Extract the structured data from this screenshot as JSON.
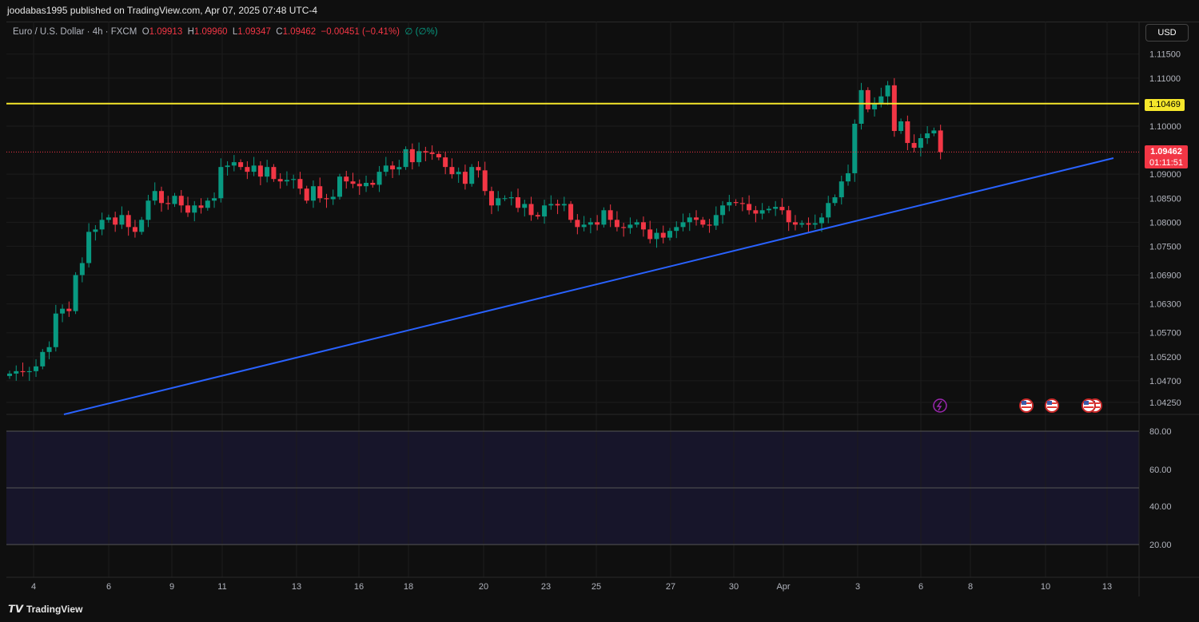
{
  "header": {
    "published": "joodabas1995 published on TradingView.com, Apr 07, 2025 07:48 UTC-4"
  },
  "legend": {
    "symbol": "Euro / U.S. Dollar · 4h · FXCM",
    "o_label": "O",
    "o": "1.09913",
    "h_label": "H",
    "h": "1.09960",
    "l_label": "L",
    "l": "1.09347",
    "c_label": "C",
    "c": "1.09462",
    "change": "−0.00451 (−0.41%)",
    "volume": "∅ (∅%)"
  },
  "currency_button": "USD",
  "price_axis": [
    "1.11500",
    "1.11000",
    "1.10000",
    "1.09000",
    "1.08500",
    "1.08000",
    "1.07500",
    "1.06900",
    "1.06300",
    "1.05700",
    "1.05200",
    "1.04700",
    "1.04250"
  ],
  "horizontal_line": {
    "label": "1.10469",
    "color": "#f5e62b"
  },
  "current_price": {
    "price": "1.09462",
    "countdown": "01:11:51",
    "color": "#f23645"
  },
  "trendline_color": "#2962ff",
  "oscillator_axis": [
    "80.00",
    "60.00",
    "40.00",
    "20.00"
  ],
  "time_axis": [
    "4",
    "6",
    "9",
    "11",
    "13",
    "16",
    "18",
    "20",
    "23",
    "25",
    "27",
    "30",
    "Apr",
    "3",
    "6",
    "8",
    "10",
    "13"
  ],
  "footer": {
    "brand": "TradingView"
  },
  "colors": {
    "up": "#089981",
    "down": "#f23645"
  },
  "chart_data": {
    "type": "candlestick",
    "symbol": "EURUSD",
    "interval": "4h",
    "ylim": [
      1.0425,
      1.115
    ],
    "close": [
      1.0485,
      1.049,
      1.0488,
      1.049,
      1.05,
      1.053,
      1.054,
      1.061,
      1.062,
      1.0615,
      1.069,
      1.0715,
      1.078,
      1.0785,
      1.0805,
      1.081,
      1.0795,
      1.0815,
      1.079,
      1.078,
      1.0805,
      1.0845,
      1.0865,
      1.084,
      1.0838,
      1.0855,
      1.0835,
      1.082,
      1.0835,
      1.083,
      1.0845,
      1.085,
      1.0915,
      1.0918,
      1.0925,
      1.0915,
      1.0905,
      1.0918,
      1.0895,
      1.0915,
      1.089,
      1.0885,
      1.0888,
      1.089,
      1.087,
      1.0845,
      1.0875,
      1.085,
      1.0848,
      1.0853,
      1.0895,
      1.0885,
      1.088,
      1.0875,
      1.0882,
      1.0878,
      1.0905,
      1.0918,
      1.091,
      1.0915,
      1.0952,
      1.0925,
      1.0948,
      1.0945,
      1.0942,
      1.0935,
      1.0915,
      1.09,
      1.0905,
      1.088,
      1.0915,
      1.0908,
      1.0865,
      1.0835,
      1.085,
      1.085,
      1.0852,
      1.083,
      1.0838,
      1.0815,
      1.0812,
      1.0835,
      1.0838,
      1.0835,
      1.0838,
      1.0805,
      1.079,
      1.0795,
      1.08,
      1.0795,
      1.0825,
      1.0805,
      1.079,
      1.0788,
      1.0795,
      1.08,
      1.0785,
      1.0765,
      1.0778,
      1.0768,
      1.0782,
      1.079,
      1.08,
      1.081,
      1.0805,
      1.0795,
      1.0793,
      1.0815,
      1.0835,
      1.0842,
      1.084,
      1.0838,
      1.0825,
      1.0818,
      1.0825,
      1.0828,
      1.0832,
      1.0825,
      1.08,
      1.0795,
      1.0798,
      1.0795,
      1.0798,
      1.081,
      1.084,
      1.0852,
      1.0885,
      1.0902,
      1.1005,
      1.1075,
      1.1035,
      1.1048,
      1.1062,
      1.1085,
      1.099,
      1.101,
      1.0965,
      1.0955,
      1.0975,
      1.0985,
      1.0991,
      1.0946
    ]
  }
}
